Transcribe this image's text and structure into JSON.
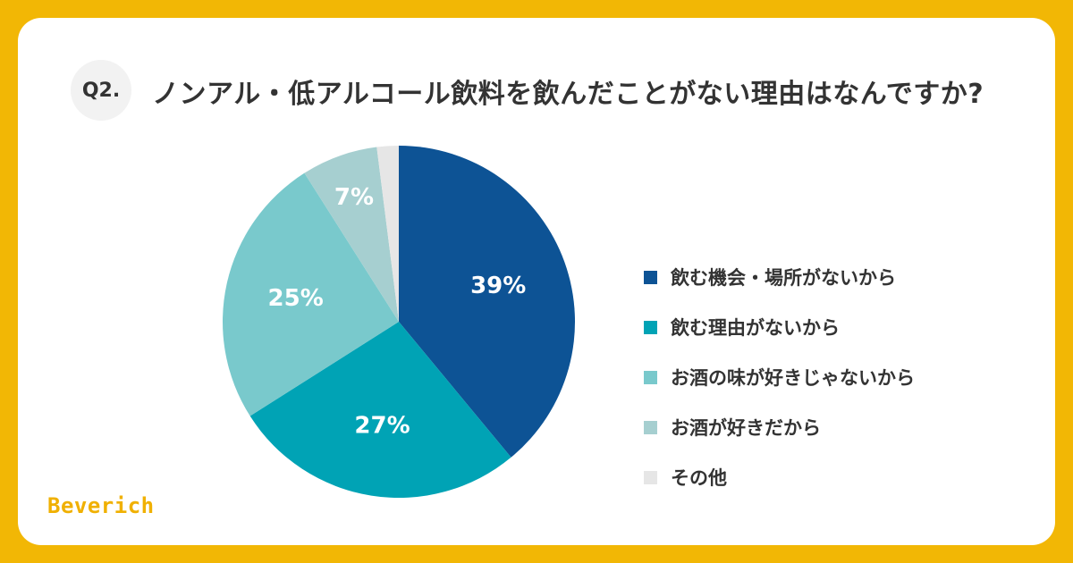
{
  "question": {
    "badge": "Q2.",
    "title": "ノンアル・低アルコール飲料を飲んだことがない理由はなんですか?"
  },
  "chart_data": {
    "type": "pie",
    "categories": [
      "飲む機会・場所がないから",
      "飲む理由がないから",
      "お酒の味が好きじゃないから",
      "お酒が好きだから",
      "その他"
    ],
    "values": [
      39,
      27,
      25,
      7,
      2
    ],
    "data_labels": [
      "39%",
      "27%",
      "25%",
      "7%",
      ""
    ],
    "colors": [
      "#0d5395",
      "#00a3b5",
      "#79c9cc",
      "#a6cfd0",
      "#e6e6e6"
    ],
    "legend_position": "right",
    "start": "top",
    "direction": "clockwise"
  },
  "brand": {
    "logo": "Beverich"
  }
}
